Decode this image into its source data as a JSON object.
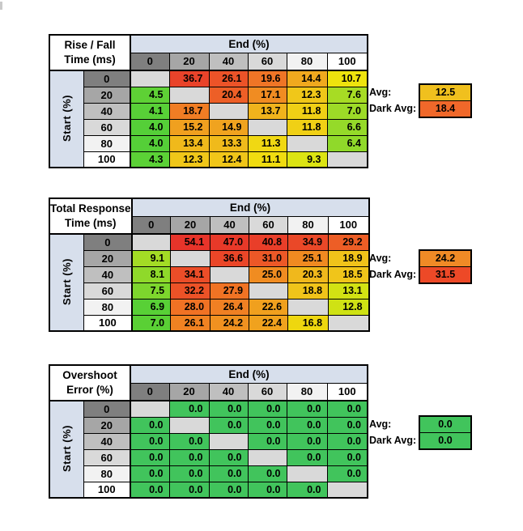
{
  "palette": {
    "band_blue": "#d7dfec",
    "blank_gray": "#d9d9d9",
    "header_shades": [
      "#7f7f7f",
      "#a6a6a6",
      "#bfbfbf",
      "#d9d9d9",
      "#f2f2f2",
      "#ffffff"
    ],
    "green": "#41c45c"
  },
  "tables": [
    {
      "title_lines": [
        "Rise / Fall",
        "Time (ms)"
      ],
      "col_axis_label": "End (%)",
      "row_axis_label": "Start (%)",
      "col_headers": [
        "0",
        "20",
        "40",
        "60",
        "80",
        "100"
      ],
      "row_headers": [
        "0",
        "20",
        "40",
        "60",
        "80",
        "100"
      ],
      "rows": [
        [
          {
            "v": "",
            "c": "#d9d9d9"
          },
          {
            "v": "36.7",
            "c": "#e9432a"
          },
          {
            "v": "26.1",
            "c": "#ec5328"
          },
          {
            "v": "19.6",
            "c": "#ef7526"
          },
          {
            "v": "14.4",
            "c": "#f0a91e"
          },
          {
            "v": "10.7",
            "c": "#eee30d"
          }
        ],
        [
          {
            "v": "4.5",
            "c": "#5ed135"
          },
          {
            "v": "",
            "c": "#d9d9d9"
          },
          {
            "v": "20.4",
            "c": "#ed5f27"
          },
          {
            "v": "17.1",
            "c": "#f08c22"
          },
          {
            "v": "12.3",
            "c": "#f0c719"
          },
          {
            "v": "7.6",
            "c": "#a7dc24"
          }
        ],
        [
          {
            "v": "4.1",
            "c": "#58d037"
          },
          {
            "v": "18.7",
            "c": "#f07d24"
          },
          {
            "v": "",
            "c": "#d9d9d9"
          },
          {
            "v": "13.7",
            "c": "#f0b31c"
          },
          {
            "v": "11.8",
            "c": "#f0d015"
          },
          {
            "v": "7.0",
            "c": "#9ddb27"
          }
        ],
        [
          {
            "v": "4.0",
            "c": "#55cf38"
          },
          {
            "v": "15.2",
            "c": "#f0a01f"
          },
          {
            "v": "14.9",
            "c": "#f0a31f"
          },
          {
            "v": "",
            "c": "#d9d9d9"
          },
          {
            "v": "11.8",
            "c": "#f0d015"
          },
          {
            "v": "6.6",
            "c": "#95da29"
          }
        ],
        [
          {
            "v": "4.0",
            "c": "#55cf38"
          },
          {
            "v": "13.4",
            "c": "#f0b91b"
          },
          {
            "v": "13.3",
            "c": "#f0ba1b"
          },
          {
            "v": "11.3",
            "c": "#f0d813"
          },
          {
            "v": "",
            "c": "#d9d9d9"
          },
          {
            "v": "6.4",
            "c": "#90d92a"
          }
        ],
        [
          {
            "v": "4.3",
            "c": "#5bd136"
          },
          {
            "v": "12.3",
            "c": "#f0c719"
          },
          {
            "v": "12.4",
            "c": "#f0c619"
          },
          {
            "v": "11.1",
            "c": "#f0dc10"
          },
          {
            "v": "9.3",
            "c": "#dce413"
          },
          {
            "v": "",
            "c": "#d9d9d9"
          }
        ]
      ],
      "avg_label": "Avg:",
      "dark_avg_label": "Dark Avg:",
      "avg": {
        "value": "12.5",
        "color": "#f0c01e"
      },
      "dark_avg": {
        "value": "18.4",
        "color": "#f0682a"
      }
    },
    {
      "title_lines": [
        "Total Response",
        "Time (ms)"
      ],
      "col_axis_label": "End (%)",
      "row_axis_label": "Start (%)",
      "col_headers": [
        "0",
        "20",
        "40",
        "60",
        "80",
        "100"
      ],
      "row_headers": [
        "0",
        "20",
        "40",
        "60",
        "80",
        "100"
      ],
      "rows": [
        [
          {
            "v": "",
            "c": "#d9d9d9"
          },
          {
            "v": "54.1",
            "c": "#e7342a"
          },
          {
            "v": "47.0",
            "c": "#e83929"
          },
          {
            "v": "40.8",
            "c": "#e93e29"
          },
          {
            "v": "34.9",
            "c": "#ea4828"
          },
          {
            "v": "29.2",
            "c": "#ed5e26"
          }
        ],
        [
          {
            "v": "9.1",
            "c": "#a3dc25"
          },
          {
            "v": "",
            "c": "#d9d9d9"
          },
          {
            "v": "36.6",
            "c": "#ea4628"
          },
          {
            "v": "31.0",
            "c": "#ec5827"
          },
          {
            "v": "25.1",
            "c": "#f08a21"
          },
          {
            "v": "18.9",
            "c": "#f0c31a"
          }
        ],
        [
          {
            "v": "8.1",
            "c": "#8fd92a"
          },
          {
            "v": "34.1",
            "c": "#eb4d28"
          },
          {
            "v": "",
            "c": "#d9d9d9"
          },
          {
            "v": "25.0",
            "c": "#f08c21"
          },
          {
            "v": "20.3",
            "c": "#f0b81c"
          },
          {
            "v": "18.5",
            "c": "#f0c51a"
          }
        ],
        [
          {
            "v": "7.5",
            "c": "#7dd62d"
          },
          {
            "v": "32.2",
            "c": "#ec5227"
          },
          {
            "v": "27.9",
            "c": "#f07324"
          },
          {
            "v": "",
            "c": "#d9d9d9"
          },
          {
            "v": "18.8",
            "c": "#f0c41a"
          },
          {
            "v": "13.1",
            "c": "#d2e213"
          }
        ],
        [
          {
            "v": "6.9",
            "c": "#58d036"
          },
          {
            "v": "28.0",
            "c": "#f07224"
          },
          {
            "v": "26.4",
            "c": "#f08023"
          },
          {
            "v": "22.6",
            "c": "#f0a01e"
          },
          {
            "v": "",
            "c": "#d9d9d9"
          },
          {
            "v": "12.8",
            "c": "#cfe214"
          }
        ],
        [
          {
            "v": "7.0",
            "c": "#5ad035"
          },
          {
            "v": "26.1",
            "c": "#f08222"
          },
          {
            "v": "24.2",
            "c": "#f09120"
          },
          {
            "v": "22.4",
            "c": "#f0a21e"
          },
          {
            "v": "16.8",
            "c": "#eed70f"
          },
          {
            "v": "",
            "c": "#d9d9d9"
          }
        ]
      ],
      "avg_label": "Avg:",
      "dark_avg_label": "Dark Avg:",
      "avg": {
        "value": "24.2",
        "color": "#f08a26"
      },
      "dark_avg": {
        "value": "31.5",
        "color": "#ed4927"
      }
    },
    {
      "title_lines": [
        "Overshoot",
        "Error (%)"
      ],
      "col_axis_label": "End (%)",
      "row_axis_label": "Start (%)",
      "col_headers": [
        "0",
        "20",
        "40",
        "60",
        "80",
        "100"
      ],
      "row_headers": [
        "0",
        "20",
        "40",
        "60",
        "80",
        "100"
      ],
      "rows": [
        [
          {
            "v": "",
            "c": "#d9d9d9"
          },
          {
            "v": "0.0",
            "c": "#41c45c"
          },
          {
            "v": "0.0",
            "c": "#41c45c"
          },
          {
            "v": "0.0",
            "c": "#41c45c"
          },
          {
            "v": "0.0",
            "c": "#41c45c"
          },
          {
            "v": "0.0",
            "c": "#41c45c"
          }
        ],
        [
          {
            "v": "0.0",
            "c": "#41c45c"
          },
          {
            "v": "",
            "c": "#d9d9d9"
          },
          {
            "v": "0.0",
            "c": "#41c45c"
          },
          {
            "v": "0.0",
            "c": "#41c45c"
          },
          {
            "v": "0.0",
            "c": "#41c45c"
          },
          {
            "v": "0.0",
            "c": "#41c45c"
          }
        ],
        [
          {
            "v": "0.0",
            "c": "#41c45c"
          },
          {
            "v": "0.0",
            "c": "#41c45c"
          },
          {
            "v": "",
            "c": "#d9d9d9"
          },
          {
            "v": "0.0",
            "c": "#41c45c"
          },
          {
            "v": "0.0",
            "c": "#41c45c"
          },
          {
            "v": "0.0",
            "c": "#41c45c"
          }
        ],
        [
          {
            "v": "0.0",
            "c": "#41c45c"
          },
          {
            "v": "0.0",
            "c": "#41c45c"
          },
          {
            "v": "0.0",
            "c": "#41c45c"
          },
          {
            "v": "",
            "c": "#d9d9d9"
          },
          {
            "v": "0.0",
            "c": "#41c45c"
          },
          {
            "v": "0.0",
            "c": "#41c45c"
          }
        ],
        [
          {
            "v": "0.0",
            "c": "#41c45c"
          },
          {
            "v": "0.0",
            "c": "#41c45c"
          },
          {
            "v": "0.0",
            "c": "#41c45c"
          },
          {
            "v": "0.0",
            "c": "#41c45c"
          },
          {
            "v": "",
            "c": "#d9d9d9"
          },
          {
            "v": "0.0",
            "c": "#41c45c"
          }
        ],
        [
          {
            "v": "0.0",
            "c": "#41c45c"
          },
          {
            "v": "0.0",
            "c": "#41c45c"
          },
          {
            "v": "0.0",
            "c": "#41c45c"
          },
          {
            "v": "0.0",
            "c": "#41c45c"
          },
          {
            "v": "0.0",
            "c": "#41c45c"
          },
          {
            "v": "",
            "c": "#d9d9d9"
          }
        ]
      ],
      "avg_label": "Avg:",
      "dark_avg_label": "Dark Avg:",
      "avg": {
        "value": "0.0",
        "color": "#41c45c"
      },
      "dark_avg": {
        "value": "0.0",
        "color": "#41c45c"
      }
    }
  ]
}
